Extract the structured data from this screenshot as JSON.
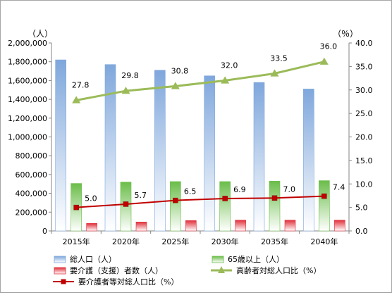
{
  "chart_data": {
    "type": "bar",
    "categories": [
      "2015年",
      "2020年",
      "2025年",
      "2030年",
      "2035年",
      "2040年"
    ],
    "left_axis": {
      "unit_label": "（人）",
      "ylim": [
        0,
        2000000
      ],
      "ticks": [
        "0",
        "200,000",
        "400,000",
        "600,000",
        "800,000",
        "1,000,000",
        "1,200,000",
        "1,400,000",
        "1,600,000",
        "1,800,000",
        "2,000,000"
      ]
    },
    "right_axis": {
      "unit_label": "（％）",
      "ylim": [
        0,
        40
      ],
      "ticks": [
        "0.0",
        "5.0",
        "10.0",
        "15.0",
        "20.0",
        "25.0",
        "30.0",
        "35.0",
        "40.0"
      ]
    },
    "series": [
      {
        "name": "総人口（人）",
        "kind": "bar",
        "axis": "left",
        "color": "#7fa7dc",
        "values": [
          1820000,
          1770000,
          1710000,
          1650000,
          1580000,
          1510000
        ]
      },
      {
        "name": "65歳以上（人）",
        "kind": "bar",
        "axis": "left",
        "color": "#6bbd4a",
        "values": [
          505000,
          520000,
          525000,
          525000,
          530000,
          535000
        ]
      },
      {
        "name": "要介護（支援）者数（人）",
        "kind": "bar",
        "axis": "left",
        "color": "#e0303a",
        "values": [
          80000,
          95000,
          110000,
          115000,
          115000,
          115000
        ]
      },
      {
        "name": "高齢者対総人口比（%）",
        "kind": "line",
        "axis": "right",
        "color": "#9bbb59",
        "marker": "triangle",
        "values": [
          27.8,
          29.8,
          30.8,
          32.0,
          33.5,
          36.0
        ],
        "labels": [
          "27.8",
          "29.8",
          "30.8",
          "32.0",
          "33.5",
          "36.0"
        ]
      },
      {
        "name": "要介護者等対総人口比（%）",
        "kind": "line",
        "axis": "right",
        "color": "#c00000",
        "marker": "square",
        "values": [
          5.0,
          5.7,
          6.5,
          6.9,
          7.0,
          7.4
        ],
        "labels": [
          "5.0",
          "5.7",
          "6.5",
          "6.9",
          "7.0",
          "7.4"
        ]
      }
    ],
    "grid": false,
    "legend_position": "bottom"
  }
}
